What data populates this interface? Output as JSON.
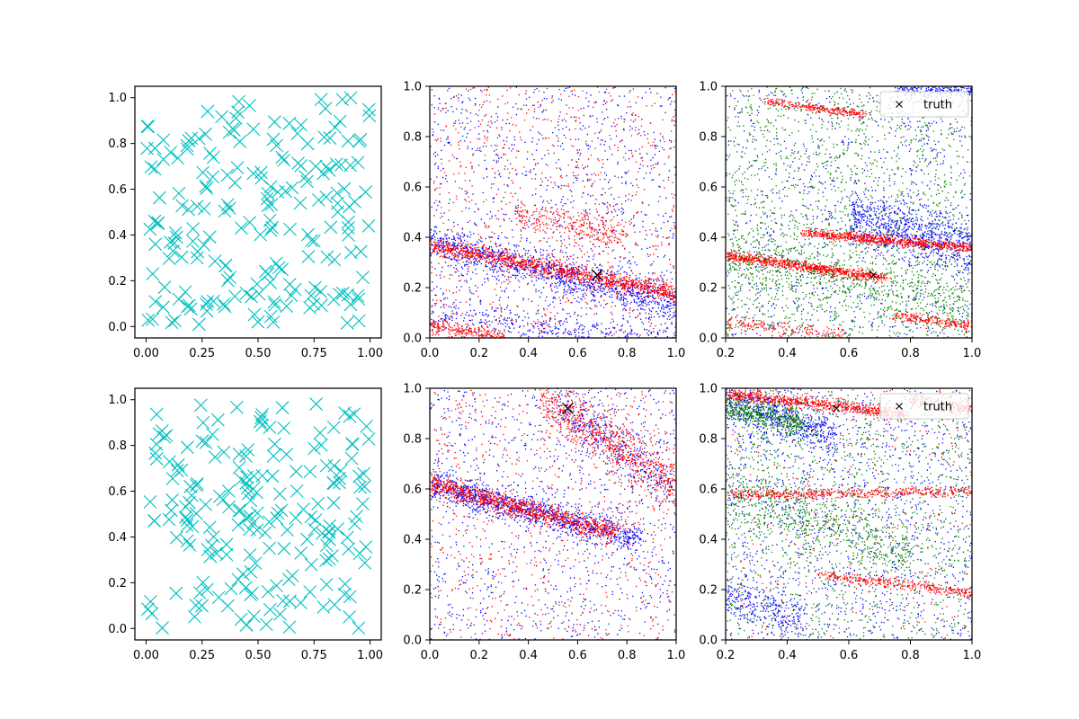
{
  "figure": {
    "rows": 2,
    "cols": 3
  },
  "colors": {
    "cyan": "#00bfbf",
    "blue": "#0000ff",
    "red": "#ff0000",
    "green": "#008000",
    "black": "#000000"
  },
  "chart_data": [
    {
      "id": "r0c0",
      "type": "scatter",
      "marker": "x-large",
      "color": "cyan",
      "xlim": [
        -0.05,
        1.05
      ],
      "ylim": [
        -0.05,
        1.05
      ],
      "xticks": [
        0.0,
        0.25,
        0.5,
        0.75,
        1.0
      ],
      "xticklabels": [
        "0.00",
        "0.25",
        "0.50",
        "0.75",
        "1.00"
      ],
      "yticks": [
        0.0,
        0.2,
        0.4,
        0.6,
        0.8,
        1.0
      ],
      "yticklabels": [
        "0.0",
        "0.2",
        "0.4",
        "0.6",
        "0.8",
        "1.0"
      ],
      "n_points": 200,
      "distribution": "uniform",
      "points_sample": [
        [
          0.01,
          0.32
        ],
        [
          0.03,
          0.99
        ],
        [
          0.05,
          0.68
        ],
        [
          0.1,
          0.23
        ],
        [
          0.22,
          0.92
        ],
        [
          0.28,
          0.59
        ],
        [
          0.39,
          0.12
        ],
        [
          0.47,
          0.42
        ],
        [
          0.55,
          0.57
        ],
        [
          0.62,
          0.06
        ],
        [
          0.73,
          0.33
        ],
        [
          0.8,
          0.02
        ],
        [
          0.85,
          0.71
        ],
        [
          0.9,
          0.43
        ],
        [
          0.95,
          0.97
        ],
        [
          0.99,
          0.54
        ]
      ]
    },
    {
      "id": "r0c1",
      "type": "scatter",
      "marker": "dot",
      "xlim": [
        0.0,
        1.0
      ],
      "ylim": [
        0.0,
        1.0
      ],
      "xticks": [
        0.0,
        0.2,
        0.4,
        0.6,
        0.8,
        1.0
      ],
      "xticklabels": [
        "0.0",
        "0.2",
        "0.4",
        "0.6",
        "0.8",
        "1.0"
      ],
      "yticks": [
        0.0,
        0.2,
        0.4,
        0.6,
        0.8,
        1.0
      ],
      "yticklabels": [
        "0.0",
        "0.2",
        "0.4",
        "0.6",
        "0.8",
        "1.0"
      ],
      "truth": {
        "x": 0.68,
        "y": 0.25,
        "marker": "x-large"
      },
      "series": [
        {
          "name": "blue",
          "color": "blue",
          "count": 2600,
          "bands": [
            {
              "x": [
                0.0,
                1.0
              ],
              "y": [
                0.38,
                0.14
              ],
              "spread": 0.04,
              "weight": 0.45
            },
            {
              "x": [
                0.0,
                1.0
              ],
              "y": [
                0.1,
                -0.02
              ],
              "spread": 0.03,
              "weight": 0.15
            }
          ],
          "uniform_weight": 0.4
        },
        {
          "name": "red",
          "color": "red",
          "count": 2600,
          "bands": [
            {
              "x": [
                0.0,
                1.0
              ],
              "y": [
                0.37,
                0.18
              ],
              "spread": 0.018,
              "weight": 0.45
            },
            {
              "x": [
                0.0,
                0.3
              ],
              "y": [
                0.05,
                0.0
              ],
              "spread": 0.015,
              "weight": 0.1
            },
            {
              "x": [
                0.35,
                0.8
              ],
              "y": [
                0.5,
                0.4
              ],
              "spread": 0.03,
              "weight": 0.12
            }
          ],
          "uniform_weight": 0.33
        }
      ]
    },
    {
      "id": "r0c2",
      "type": "scatter",
      "marker": "dot",
      "xlim": [
        0.2,
        1.0
      ],
      "ylim": [
        0.0,
        1.0
      ],
      "xticks": [
        0.2,
        0.4,
        0.6,
        0.8,
        1.0
      ],
      "xticklabels": [
        "0.2",
        "0.4",
        "0.6",
        "0.8",
        "1.0"
      ],
      "yticks": [
        0.0,
        0.2,
        0.4,
        0.6,
        0.8,
        1.0
      ],
      "yticklabels": [
        "0.0",
        "0.2",
        "0.4",
        "0.6",
        "0.8",
        "1.0"
      ],
      "truth": {
        "x": 0.68,
        "y": 0.25,
        "marker": "x-small"
      },
      "legend": {
        "label": "truth",
        "placement": "upper right"
      },
      "series": [
        {
          "name": "blue",
          "color": "blue",
          "count": 2000,
          "bands": [
            {
              "x": [
                0.6,
                1.0
              ],
              "y": [
                0.48,
                0.36
              ],
              "spread": 0.06,
              "weight": 0.45
            },
            {
              "x": [
                0.75,
                1.0
              ],
              "y": [
                0.99,
                0.99
              ],
              "spread": 0.015,
              "weight": 0.12
            }
          ],
          "uniform_weight": 0.43
        },
        {
          "name": "green",
          "color": "green",
          "count": 2400,
          "bands": [
            {
              "x": [
                0.2,
                1.0
              ],
              "y": [
                0.34,
                0.12
              ],
              "spread": 0.07,
              "weight": 0.3
            }
          ],
          "uniform_weight": 0.7
        },
        {
          "name": "red",
          "color": "red",
          "count": 2200,
          "bands": [
            {
              "x": [
                0.2,
                0.72
              ],
              "y": [
                0.33,
                0.24
              ],
              "spread": 0.01,
              "weight": 0.35
            },
            {
              "x": [
                0.45,
                1.0
              ],
              "y": [
                0.42,
                0.36
              ],
              "spread": 0.01,
              "weight": 0.35
            },
            {
              "x": [
                0.33,
                0.65
              ],
              "y": [
                0.94,
                0.89
              ],
              "spread": 0.008,
              "weight": 0.12
            },
            {
              "x": [
                0.75,
                1.0
              ],
              "y": [
                0.09,
                0.05
              ],
              "spread": 0.01,
              "weight": 0.1
            },
            {
              "x": [
                0.2,
                0.6
              ],
              "y": [
                0.06,
                0.01
              ],
              "spread": 0.015,
              "weight": 0.08
            }
          ],
          "uniform_weight": 0.0
        }
      ]
    },
    {
      "id": "r1c0",
      "type": "scatter",
      "marker": "x-large",
      "color": "cyan",
      "xlim": [
        -0.05,
        1.05
      ],
      "ylim": [
        -0.05,
        1.05
      ],
      "xticks": [
        0.0,
        0.25,
        0.5,
        0.75,
        1.0
      ],
      "xticklabels": [
        "0.00",
        "0.25",
        "0.50",
        "0.75",
        "1.00"
      ],
      "yticks": [
        0.0,
        0.2,
        0.4,
        0.6,
        0.8,
        1.0
      ],
      "yticklabels": [
        "0.0",
        "0.2",
        "0.4",
        "0.6",
        "0.8",
        "1.0"
      ],
      "n_points": 200,
      "distribution": "uniform",
      "points_sample": [
        [
          0.0,
          0.08
        ],
        [
          0.03,
          0.48
        ],
        [
          0.06,
          0.81
        ],
        [
          0.14,
          0.29
        ],
        [
          0.2,
          0.98
        ],
        [
          0.24,
          0.13
        ],
        [
          0.3,
          0.52
        ],
        [
          0.38,
          0.06
        ],
        [
          0.45,
          0.82
        ],
        [
          0.52,
          0.64
        ],
        [
          0.66,
          0.03
        ],
        [
          0.74,
          0.9
        ],
        [
          0.82,
          0.45
        ],
        [
          0.9,
          0.16
        ],
        [
          0.96,
          0.6
        ],
        [
          0.99,
          0.36
        ]
      ]
    },
    {
      "id": "r1c1",
      "type": "scatter",
      "marker": "dot",
      "xlim": [
        0.0,
        1.0
      ],
      "ylim": [
        0.0,
        1.0
      ],
      "xticks": [
        0.0,
        0.2,
        0.4,
        0.6,
        0.8,
        1.0
      ],
      "xticklabels": [
        "0.0",
        "0.2",
        "0.4",
        "0.6",
        "0.8",
        "1.0"
      ],
      "yticks": [
        0.0,
        0.2,
        0.4,
        0.6,
        0.8,
        1.0
      ],
      "yticklabels": [
        "0.0",
        "0.2",
        "0.4",
        "0.6",
        "0.8",
        "1.0"
      ],
      "truth": {
        "x": 0.56,
        "y": 0.92,
        "marker": "x-large"
      },
      "series": [
        {
          "name": "blue",
          "color": "blue",
          "count": 2600,
          "bands": [
            {
              "x": [
                0.0,
                0.85
              ],
              "y": [
                0.62,
                0.4
              ],
              "spread": 0.03,
              "weight": 0.45
            },
            {
              "x": [
                0.5,
                1.0
              ],
              "y": [
                0.95,
                0.6
              ],
              "spread": 0.05,
              "weight": 0.15
            }
          ],
          "uniform_weight": 0.4
        },
        {
          "name": "red",
          "color": "red",
          "count": 2600,
          "bands": [
            {
              "x": [
                0.0,
                0.75
              ],
              "y": [
                0.62,
                0.43
              ],
              "spread": 0.02,
              "weight": 0.4
            },
            {
              "x": [
                0.45,
                1.0
              ],
              "y": [
                0.96,
                0.62
              ],
              "spread": 0.05,
              "weight": 0.28
            }
          ],
          "uniform_weight": 0.32
        }
      ]
    },
    {
      "id": "r1c2",
      "type": "scatter",
      "marker": "dot",
      "xlim": [
        0.2,
        1.0
      ],
      "ylim": [
        0.0,
        1.0
      ],
      "xticks": [
        0.2,
        0.4,
        0.6,
        0.8,
        1.0
      ],
      "xticklabels": [
        "0.2",
        "0.4",
        "0.6",
        "0.8",
        "1.0"
      ],
      "yticks": [
        0.0,
        0.2,
        0.4,
        0.6,
        0.8,
        1.0
      ],
      "yticklabels": [
        "0.0",
        "0.2",
        "0.4",
        "0.6",
        "0.8",
        "1.0"
      ],
      "truth": {
        "x": 0.56,
        "y": 0.92,
        "marker": "x-small"
      },
      "legend": {
        "label": "truth",
        "placement": "upper right"
      },
      "series": [
        {
          "name": "blue",
          "color": "blue",
          "count": 2200,
          "bands": [
            {
              "x": [
                0.2,
                0.55
              ],
              "y": [
                0.95,
                0.82
              ],
              "spread": 0.04,
              "weight": 0.25
            },
            {
              "x": [
                0.2,
                0.45
              ],
              "y": [
                0.18,
                0.08
              ],
              "spread": 0.04,
              "weight": 0.12
            }
          ],
          "uniform_weight": 0.63
        },
        {
          "name": "green",
          "color": "green",
          "count": 2400,
          "bands": [
            {
              "x": [
                0.2,
                0.45
              ],
              "y": [
                0.93,
                0.86
              ],
              "spread": 0.03,
              "weight": 0.2
            },
            {
              "x": [
                0.2,
                0.8
              ],
              "y": [
                0.6,
                0.35
              ],
              "spread": 0.07,
              "weight": 0.25
            }
          ],
          "uniform_weight": 0.55
        },
        {
          "name": "red",
          "color": "red",
          "count": 2000,
          "bands": [
            {
              "x": [
                0.2,
                0.78
              ],
              "y": [
                0.98,
                0.9
              ],
              "spread": 0.012,
              "weight": 0.38
            },
            {
              "x": [
                0.2,
                1.0
              ],
              "y": [
                0.58,
                0.59
              ],
              "spread": 0.01,
              "weight": 0.25
            },
            {
              "x": [
                0.5,
                1.0
              ],
              "y": [
                0.26,
                0.19
              ],
              "spread": 0.01,
              "weight": 0.17
            },
            {
              "x": [
                0.8,
                1.0
              ],
              "y": [
                0.95,
                0.92
              ],
              "spread": 0.02,
              "weight": 0.08
            }
          ],
          "uniform_weight": 0.12
        }
      ]
    }
  ]
}
